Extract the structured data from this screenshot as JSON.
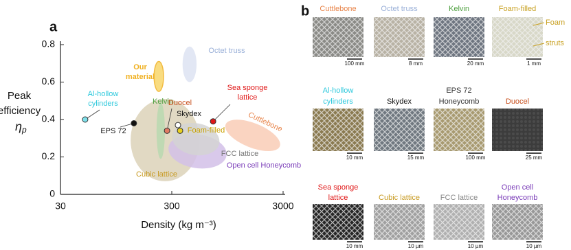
{
  "chart_data": {
    "type": "scatter",
    "panel": "a",
    "xscale": "log",
    "xlim": [
      30,
      3000
    ],
    "xticks": [
      30,
      300,
      3000
    ],
    "ylim": [
      0,
      0.8
    ],
    "yticks": [
      0,
      0.2,
      0.4,
      0.6,
      0.8
    ],
    "xlabel": "Density (kg m⁻³)",
    "ylabel": {
      "lines": [
        "Peak",
        "efficiency"
      ],
      "symbol": "η",
      "subscript": "p"
    },
    "regions": [
      {
        "label": [
          "Cubic lattice"
        ],
        "color": "#dcd2b8",
        "label_color": "#c89a20",
        "xrange": [
          128,
          532
        ],
        "yrange": [
          0.07,
          0.51
        ]
      },
      {
        "label": [
          "Open cell Honeycomb"
        ],
        "color": "#d2bfe8",
        "label_color": "#7a3cb8",
        "xrange": [
          279,
          937
        ],
        "yrange": [
          0.14,
          0.32
        ]
      },
      {
        "label": [
          "FCC lattice"
        ],
        "color": "#d4d4d4",
        "label_color": "#777777",
        "xrange": [
          300,
          808
        ],
        "yrange": [
          0.21,
          0.38
        ]
      },
      {
        "label": [
          "Kelvin"
        ],
        "color": "#b8d8b0",
        "label_color": "#4fa040",
        "xrange": [
          219,
          260
        ],
        "yrange": [
          0.19,
          0.49
        ]
      },
      {
        "label": [
          "Cuttlebone"
        ],
        "color": "#f9cdb6",
        "label_color": "#e8844a",
        "xrange": [
          874,
          2928
        ],
        "yrange": [
          0.25,
          0.38
        ]
      },
      {
        "label": [
          "Octet truss"
        ],
        "color": "#dde3f2",
        "label_color": "#9ab0d8",
        "xrange": [
          375,
          501
        ],
        "yrange": [
          0.6,
          0.79
        ]
      },
      {
        "label": [
          "Our",
          "material"
        ],
        "color": "#f8d66a",
        "label_color": "#f0b020",
        "xrange": [
          208,
          253
        ],
        "yrange": [
          0.55,
          0.71
        ]
      }
    ],
    "points": [
      {
        "label": [
          "Al-hollow",
          "cylinders"
        ],
        "color": "#7fe0ea",
        "label_color": "#2cc8dc",
        "x": 50,
        "y": 0.4
      },
      {
        "label": [
          "EPS 72"
        ],
        "color": "#111111",
        "label_color": "#111111",
        "x": 137,
        "y": 0.38
      },
      {
        "label": [
          "Duocel"
        ],
        "color": "#e07a62",
        "label_color": "#c8501e",
        "x": 272,
        "y": 0.34
      },
      {
        "label": [
          "Skydex"
        ],
        "color": "#ffffff",
        "label_color": "#111111",
        "x": 341,
        "y": 0.37
      },
      {
        "label": [
          "Foam-filled"
        ],
        "color": "#e8d020",
        "label_color": "#c8a000",
        "x": 356,
        "y": 0.34
      },
      {
        "label": [
          "Sea sponge",
          "lattice"
        ],
        "color": "#e01818",
        "label_color": "#e01818",
        "x": 705,
        "y": 0.39
      }
    ]
  },
  "panel_b": {
    "panel": "b",
    "cells": [
      {
        "title": [
          "Cuttlebone"
        ],
        "color": "#e8844a",
        "scale": "100 mm"
      },
      {
        "title": [
          "Octet truss"
        ],
        "color": "#9ab0d8",
        "scale": "8 mm"
      },
      {
        "title": [
          "Kelvin"
        ],
        "color": "#4fa040",
        "scale": "20 mm"
      },
      {
        "title": [
          "Foam-filled"
        ],
        "color": "#c8a020",
        "scale": "1 mm",
        "annotations": [
          "Foam",
          "struts"
        ]
      },
      {
        "title": [
          "Al-hollow",
          "cylinders"
        ],
        "color": "#2cc8dc",
        "scale": "10 mm"
      },
      {
        "title": [
          "Skydex"
        ],
        "color": "#111111",
        "scale": "15 mm"
      },
      {
        "title": [
          "EPS 72",
          "Honeycomb"
        ],
        "color": "#333333",
        "scale": "100 mm"
      },
      {
        "title": [
          "Duocel"
        ],
        "color": "#c8501e",
        "scale": "25 mm"
      },
      {
        "title": [
          "Sea sponge",
          "lattice"
        ],
        "color": "#e01818",
        "scale": "10 mm"
      },
      {
        "title": [
          "Cubic lattice"
        ],
        "color": "#c89a20",
        "scale": "10 µm"
      },
      {
        "title": [
          "FCC lattice"
        ],
        "color": "#888888",
        "scale": "10 µm"
      },
      {
        "title": [
          "Open cell",
          "Honeycomb"
        ],
        "color": "#7a3cb8",
        "scale": "10 µm"
      }
    ]
  }
}
